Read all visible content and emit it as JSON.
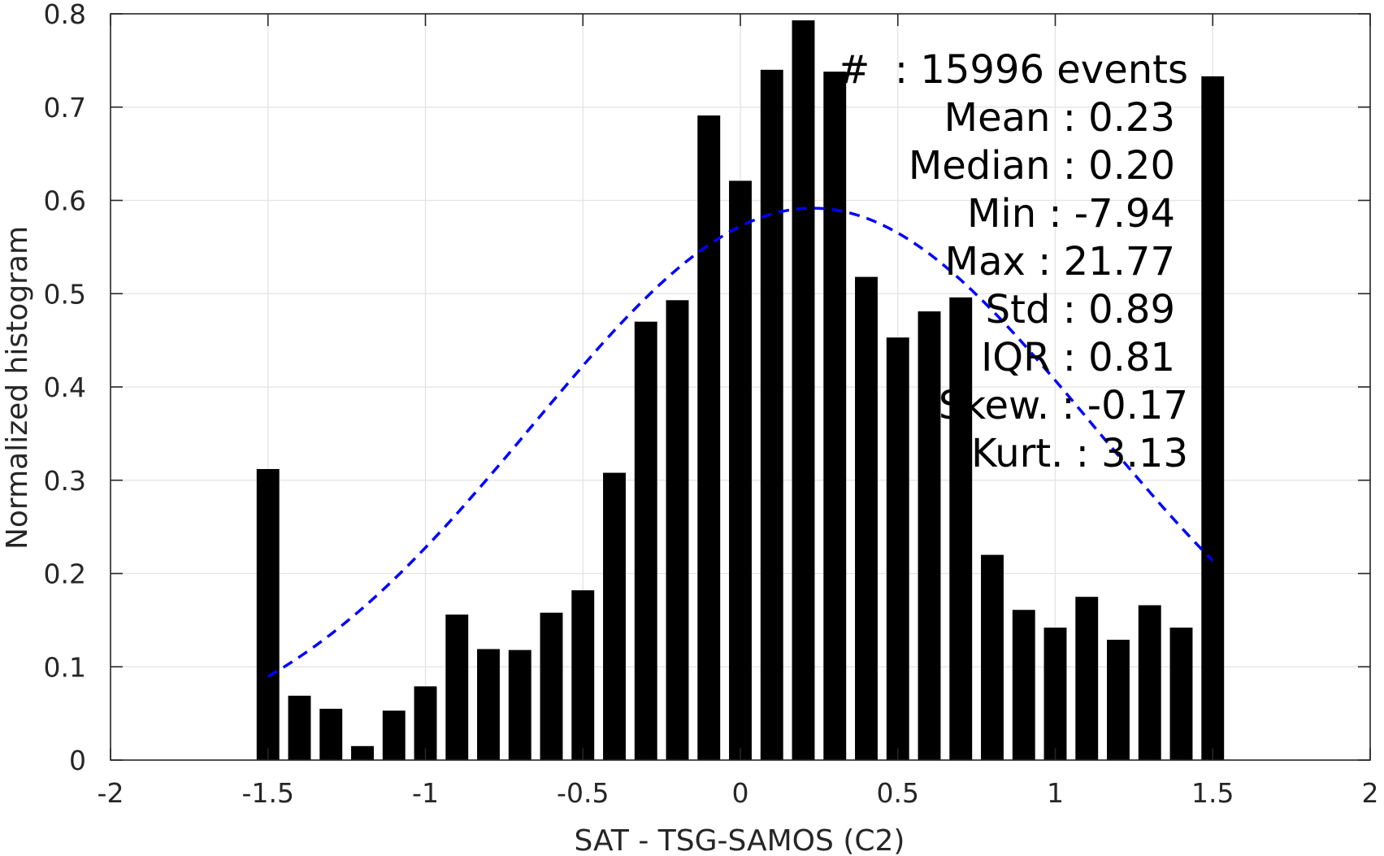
{
  "chart_data": {
    "type": "bar",
    "xlabel": "SAT - TSG-SAMOS (C2)",
    "ylabel": "Normalized histogram",
    "xlim": [
      -2,
      2
    ],
    "ylim": [
      0,
      0.8
    ],
    "xticks": [
      -2,
      -1.5,
      -1,
      -0.5,
      0,
      0.5,
      1,
      1.5,
      2
    ],
    "xtick_labels": [
      "-2",
      "-1.5",
      "-1",
      "-0.5",
      "0",
      "0.5",
      "1",
      "1.5",
      "2"
    ],
    "yticks": [
      0,
      0.1,
      0.2,
      0.3,
      0.4,
      0.5,
      0.6,
      0.7,
      0.8
    ],
    "ytick_labels": [
      "0",
      "0.1",
      "0.2",
      "0.3",
      "0.4",
      "0.5",
      "0.6",
      "0.7",
      "0.8"
    ],
    "grid": true,
    "bar_color": "#000000",
    "curve_color": "#0000ff",
    "bars": {
      "x": [
        -1.5,
        -1.4,
        -1.3,
        -1.2,
        -1.1,
        -1.0,
        -0.9,
        -0.8,
        -0.7,
        -0.6,
        -0.5,
        -0.4,
        -0.3,
        -0.2,
        -0.1,
        0.0,
        0.1,
        0.2,
        0.3,
        0.4,
        0.5,
        0.6,
        0.7,
        0.8,
        0.9,
        1.0,
        1.1,
        1.2,
        1.3,
        1.4,
        1.5
      ],
      "values": [
        0.312,
        0.069,
        0.055,
        0.015,
        0.053,
        0.079,
        0.156,
        0.119,
        0.118,
        0.158,
        0.182,
        0.308,
        0.47,
        0.493,
        0.691,
        0.621,
        0.74,
        0.793,
        0.738,
        0.518,
        0.453,
        0.481,
        0.496,
        0.22,
        0.161,
        0.142,
        0.175,
        0.129,
        0.166,
        0.142,
        0.733
      ]
    },
    "normal_fit": {
      "mean": 0.23,
      "std": 0.89,
      "style": "dashed",
      "x_range": [
        -1.5,
        1.5
      ]
    },
    "stats": [
      "#  : 15996 events",
      "Mean : 0.23",
      "Median : 0.20",
      "Min : -7.94",
      "Max : 21.77",
      "Std : 0.89",
      "IQR : 0.81",
      "Skew. : -0.17",
      "Kurt. : 3.13"
    ]
  }
}
